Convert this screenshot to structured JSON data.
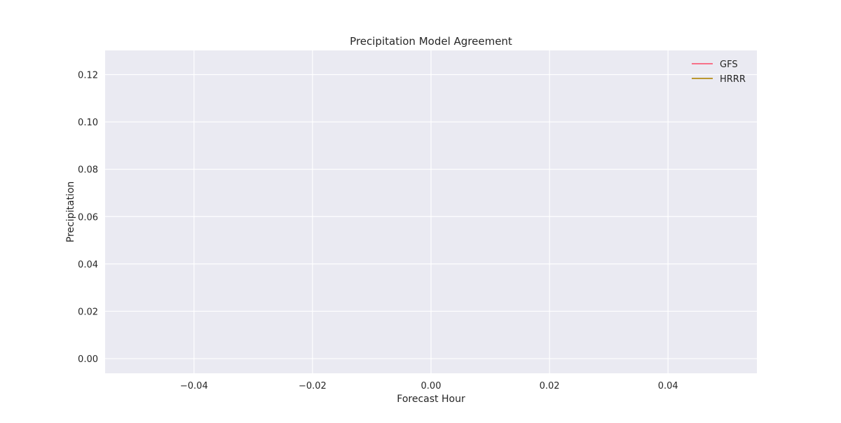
{
  "chart_data": {
    "type": "line",
    "title": "Precipitation Model Agreement",
    "xlabel": "Forecast Hour",
    "ylabel": "Precipitation",
    "xlim": [
      -0.055,
      0.055
    ],
    "ylim": [
      -0.0062,
      0.1302
    ],
    "x_ticks": [
      -0.04,
      -0.02,
      0.0,
      0.02,
      0.04
    ],
    "x_tick_labels": [
      "−0.04",
      "−0.02",
      "0.00",
      "0.02",
      "0.04"
    ],
    "y_ticks": [
      0.0,
      0.02,
      0.04,
      0.06,
      0.08,
      0.1,
      0.12
    ],
    "y_tick_labels": [
      "0.00",
      "0.02",
      "0.04",
      "0.06",
      "0.08",
      "0.10",
      "0.12"
    ],
    "grid": true,
    "legend_position": "top-right",
    "series": [
      {
        "name": "GFS",
        "color": "#f77189",
        "x": [],
        "y": []
      },
      {
        "name": "HRRR",
        "color": "#bb9832",
        "x": [],
        "y": []
      }
    ],
    "colors": {
      "plot_background": "#eaeaf2",
      "grid": "#ffffff",
      "text": "#262626"
    }
  }
}
